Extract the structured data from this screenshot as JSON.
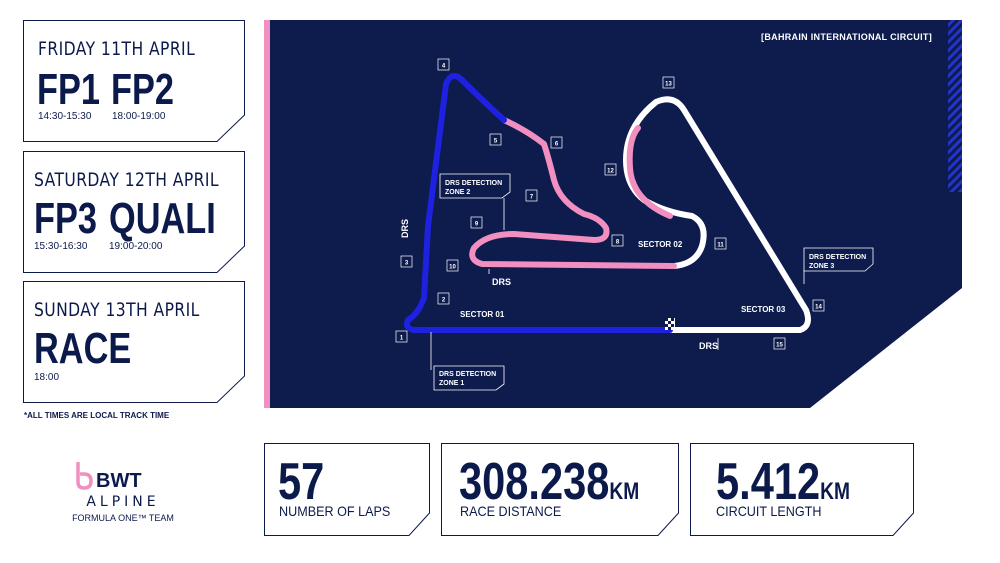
{
  "schedule": [
    {
      "day": "FRIDAY 11TH APRIL",
      "sessions": [
        {
          "name": "FP1",
          "time": "14:30-15:30"
        },
        {
          "name": "FP2",
          "time": "18:00-19:00"
        }
      ]
    },
    {
      "day": "SATURDAY 12TH APRIL",
      "sessions": [
        {
          "name": "FP3",
          "time": "15:30-16:30"
        },
        {
          "name": "QUALI",
          "time": "19:00-20:00"
        }
      ]
    },
    {
      "day": "SUNDAY 13TH APRIL",
      "sessions": [
        {
          "name": "RACE",
          "time": "18:00"
        }
      ]
    }
  ],
  "footnote": "*ALL TIMES ARE LOCAL TRACK TIME",
  "circuit": {
    "name": "[BAHRAIN INTERNATIONAL CIRCUIT]",
    "turns": [
      "1",
      "2",
      "3",
      "4",
      "5",
      "6",
      "7",
      "8",
      "9",
      "10",
      "11",
      "12",
      "13",
      "14",
      "15"
    ],
    "sectors": [
      "SECTOR 01",
      "SECTOR 02",
      "SECTOR 03"
    ],
    "drs_label": "DRS",
    "drs_detection": [
      {
        "line1": "DRS DETECTION",
        "line2": "ZONE 1"
      },
      {
        "line1": "DRS DETECTION",
        "line2": "ZONE 2"
      },
      {
        "line1": "DRS DETECTION",
        "line2": "ZONE 3"
      }
    ]
  },
  "stats": [
    {
      "value": "57",
      "unit": "",
      "label": "NUMBER OF LAPS"
    },
    {
      "value": "308.238",
      "unit": "KM",
      "label": "RACE DISTANCE"
    },
    {
      "value": "5.412",
      "unit": "KM",
      "label": "CIRCUIT LENGTH"
    }
  ],
  "logo": {
    "brand": "BWT",
    "team": "ALPINE",
    "sub": "FORMULA ONE™ TEAM"
  },
  "colors": {
    "navy": "#0c1a4b",
    "map_bg": "#0d1b4d",
    "pink": "#f08fc0",
    "blue": "#1e22e0",
    "white": "#ffffff"
  }
}
